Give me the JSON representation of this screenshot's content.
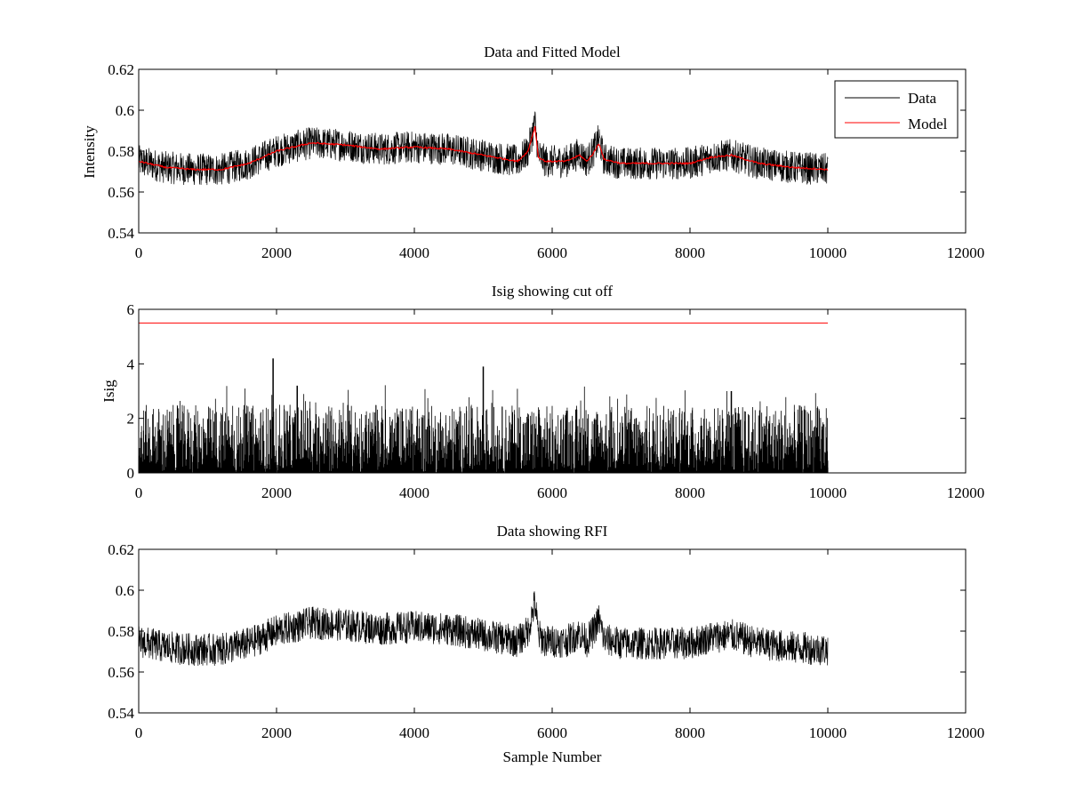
{
  "chart_data": [
    {
      "type": "line",
      "title": "Data and Fitted Model",
      "xlabel": "",
      "ylabel": "Intensity",
      "xlim": [
        0,
        12000
      ],
      "ylim": [
        0.54,
        0.62
      ],
      "xticks": [
        0,
        2000,
        4000,
        6000,
        8000,
        10000,
        12000
      ],
      "yticks": [
        0.54,
        0.56,
        0.58,
        0.6,
        0.62
      ],
      "grid": false,
      "legend": "top-right",
      "series": [
        {
          "name": "Data",
          "color": "#000000",
          "noise_amplitude": 0.008,
          "x": [
            0,
            400,
            800,
            1200,
            1600,
            2000,
            2500,
            3000,
            3500,
            4000,
            4500,
            5000,
            5500,
            5650,
            5750,
            5800,
            5900,
            6200,
            6400,
            6500,
            6600,
            6680,
            6750,
            7000,
            7500,
            8000,
            8300,
            8600,
            9000,
            9500,
            10000
          ],
          "y": [
            0.575,
            0.572,
            0.571,
            0.571,
            0.574,
            0.58,
            0.584,
            0.583,
            0.581,
            0.582,
            0.581,
            0.578,
            0.575,
            0.58,
            0.594,
            0.578,
            0.575,
            0.575,
            0.579,
            0.575,
            0.58,
            0.586,
            0.576,
            0.574,
            0.574,
            0.574,
            0.577,
            0.578,
            0.574,
            0.572,
            0.571
          ]
        },
        {
          "name": "Model",
          "color": "#ff0000",
          "x": [
            0,
            400,
            800,
            1200,
            1600,
            2000,
            2500,
            3000,
            3500,
            4000,
            4500,
            5000,
            5500,
            5650,
            5750,
            5800,
            5900,
            6200,
            6400,
            6500,
            6600,
            6680,
            6750,
            7000,
            7500,
            8000,
            8300,
            8600,
            9000,
            9500,
            10000
          ],
          "y": [
            0.575,
            0.572,
            0.571,
            0.571,
            0.574,
            0.58,
            0.584,
            0.583,
            0.581,
            0.582,
            0.581,
            0.578,
            0.575,
            0.58,
            0.592,
            0.577,
            0.575,
            0.575,
            0.578,
            0.575,
            0.579,
            0.584,
            0.576,
            0.574,
            0.574,
            0.574,
            0.577,
            0.578,
            0.574,
            0.572,
            0.571
          ]
        }
      ]
    },
    {
      "type": "line",
      "title": "Isig showing cut off",
      "xlabel": "",
      "ylabel": "Isig",
      "xlim": [
        0,
        12000
      ],
      "ylim": [
        0,
        6
      ],
      "xticks": [
        0,
        2000,
        4000,
        6000,
        8000,
        10000,
        12000
      ],
      "yticks": [
        0,
        2,
        4,
        6
      ],
      "grid": false,
      "series": [
        {
          "kind": "spikes",
          "color": "#000000",
          "x_range": [
            0,
            10000
          ],
          "typical_max": 2.5,
          "peak_x": [
            1950,
            5000,
            2300,
            8600
          ],
          "peak_y": [
            4.2,
            3.9,
            3.2,
            3.0
          ]
        },
        {
          "kind": "cutoff",
          "color": "#ff0000",
          "x": [
            0,
            10000
          ],
          "y": [
            5.5,
            5.5
          ]
        }
      ]
    },
    {
      "type": "line",
      "title": "Data showing RFI",
      "xlabel": "Sample Number",
      "ylabel": "",
      "xlim": [
        0,
        12000
      ],
      "ylim": [
        0.54,
        0.62
      ],
      "xticks": [
        0,
        2000,
        4000,
        6000,
        8000,
        10000,
        12000
      ],
      "yticks": [
        0.54,
        0.56,
        0.58,
        0.6,
        0.62
      ],
      "grid": false,
      "series": [
        {
          "color": "#000000",
          "noise_amplitude": 0.008,
          "x": [
            0,
            400,
            800,
            1200,
            1600,
            2000,
            2500,
            3000,
            3500,
            4000,
            4500,
            5000,
            5500,
            5650,
            5750,
            5800,
            5900,
            6200,
            6400,
            6500,
            6600,
            6680,
            6750,
            7000,
            7500,
            8000,
            8300,
            8600,
            9000,
            9500,
            10000
          ],
          "y": [
            0.575,
            0.572,
            0.571,
            0.571,
            0.574,
            0.58,
            0.584,
            0.583,
            0.581,
            0.582,
            0.581,
            0.578,
            0.575,
            0.58,
            0.594,
            0.578,
            0.575,
            0.575,
            0.579,
            0.575,
            0.58,
            0.586,
            0.576,
            0.574,
            0.574,
            0.574,
            0.577,
            0.578,
            0.574,
            0.572,
            0.571
          ]
        }
      ]
    }
  ]
}
